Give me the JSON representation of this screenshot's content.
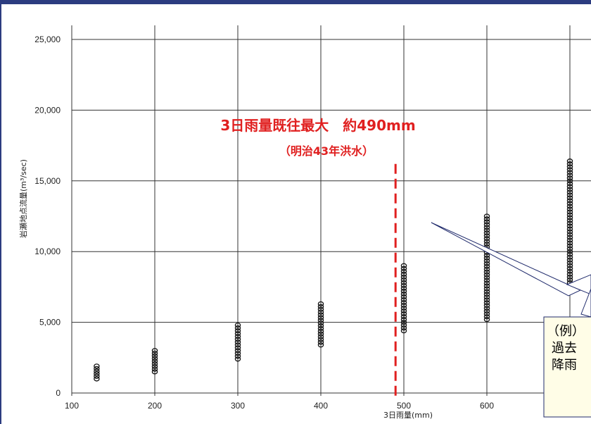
{
  "chart_data": {
    "type": "scatter",
    "xlabel": "3日雨量(mm)",
    "ylabel": "岩瀬地点流量(m³/sec)",
    "xlim": [
      100,
      700
    ],
    "ylim": [
      0,
      25000
    ],
    "xticks": [
      "100",
      "200",
      "300",
      "400",
      "500",
      "600"
    ],
    "yticks": [
      "0",
      "5,000",
      "10,000",
      "15,000",
      "20,000",
      "25,000"
    ],
    "grid": true,
    "point_columns": [
      {
        "x": 130,
        "ymin": 1000,
        "ymax": 1900
      },
      {
        "x": 200,
        "ymin": 1500,
        "ymax": 3000
      },
      {
        "x": 300,
        "ymin": 2400,
        "ymax": 4800
      },
      {
        "x": 400,
        "ymin": 3400,
        "ymax": 6300
      },
      {
        "x": 500,
        "ymin": 4400,
        "ymax": 9000
      },
      {
        "x": 600,
        "ymin": 5200,
        "ymax": 12500
      },
      {
        "x": 700,
        "ymin": 7800,
        "ymax": 16400
      }
    ],
    "reference_line": {
      "x": 490,
      "color": "#e02020"
    },
    "annotation": {
      "line1": "3日雨量既往最大　約490mm",
      "line2": "（明治43年洪水）",
      "color": "#e02020"
    },
    "callout": {
      "line1": "（例）",
      "line2": "過去",
      "line3": "降雨"
    }
  }
}
